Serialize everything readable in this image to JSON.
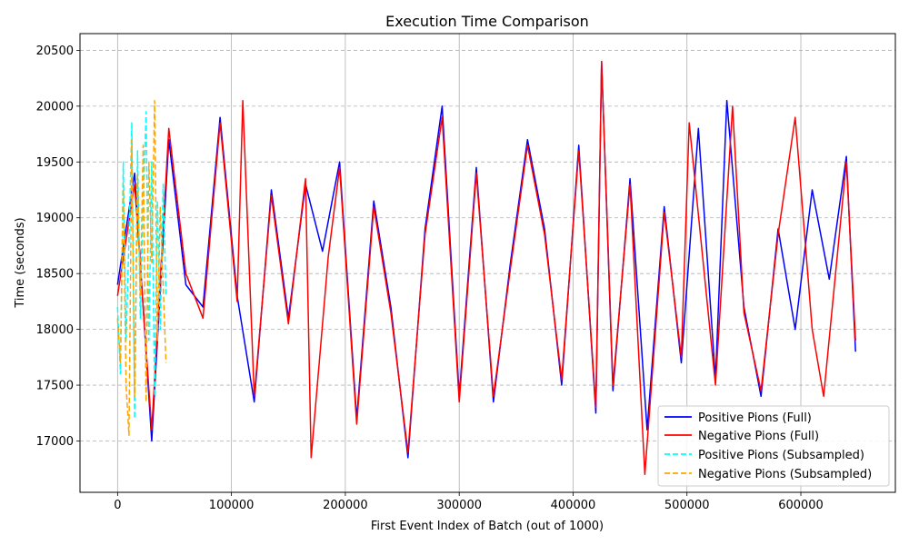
{
  "chart_data": {
    "type": "line",
    "title": "Execution Time Comparison",
    "xlabel": "First Event Index of Batch (out of 1000)",
    "ylabel": "Time (seconds)",
    "xlim": [
      -33000,
      683000
    ],
    "ylim": [
      16540,
      20650
    ],
    "xticks": [
      0,
      100000,
      200000,
      300000,
      400000,
      500000,
      600000
    ],
    "yticks": [
      17000,
      17500,
      18000,
      18500,
      19000,
      19500,
      20000,
      20500
    ],
    "grid": {
      "x": "solid",
      "y": "dashed"
    },
    "legend_position": "lower-right",
    "series": [
      {
        "name": "Positive Pions (Full)",
        "color": "#0000ff",
        "dash": "solid",
        "x": [
          0,
          15000,
          30000,
          45000,
          60000,
          75000,
          90000,
          105000,
          120000,
          135000,
          150000,
          165000,
          180000,
          195000,
          210000,
          225000,
          240000,
          255000,
          270000,
          285000,
          300000,
          315000,
          330000,
          345000,
          360000,
          375000,
          390000,
          405000,
          420000,
          425000,
          435000,
          450000,
          465000,
          480000,
          495000,
          510000,
          525000,
          535000,
          550000,
          565000,
          580000,
          595000,
          610000,
          625000,
          640000,
          648000
        ],
        "values": [
          18400,
          19400,
          17000,
          19700,
          18400,
          18200,
          19900,
          18300,
          17350,
          19250,
          18100,
          19300,
          18700,
          19500,
          17200,
          19150,
          18200,
          16850,
          18900,
          20000,
          17400,
          19450,
          17350,
          18600,
          19700,
          18900,
          17500,
          19650,
          17250,
          20400,
          17450,
          19350,
          17100,
          19100,
          17700,
          19800,
          17550,
          20050,
          18200,
          17400,
          18900,
          18000,
          19250,
          18450,
          19550,
          17800
        ]
      },
      {
        "name": "Negative Pions (Full)",
        "color": "#ff0000",
        "dash": "solid",
        "x": [
          0,
          15000,
          30000,
          45000,
          60000,
          75000,
          90000,
          105000,
          110000,
          120000,
          135000,
          150000,
          165000,
          170000,
          185000,
          195000,
          210000,
          225000,
          240000,
          255000,
          270000,
          285000,
          300000,
          315000,
          330000,
          345000,
          360000,
          375000,
          390000,
          405000,
          420000,
          425000,
          435000,
          450000,
          463000,
          480000,
          495000,
          502000,
          525000,
          540000,
          550000,
          565000,
          580000,
          595000,
          610000,
          620000,
          640000,
          648000
        ],
        "values": [
          18300,
          19300,
          17100,
          19800,
          18500,
          18100,
          19850,
          18250,
          20050,
          17400,
          19200,
          18050,
          19350,
          16850,
          18650,
          19450,
          17150,
          19100,
          18150,
          16900,
          18850,
          19900,
          17350,
          19400,
          17400,
          18550,
          19650,
          18850,
          17550,
          19600,
          17300,
          20400,
          17500,
          19300,
          16700,
          19050,
          17750,
          19850,
          17500,
          20000,
          18150,
          17450,
          18850,
          19900,
          18000,
          17400,
          19500,
          17900
        ]
      },
      {
        "name": "Positive Pions (Subsampled)",
        "color": "#00ffff",
        "dash": "dashed",
        "x": [
          0,
          2500,
          5000,
          7500,
          10000,
          12500,
          15000,
          17500,
          20000,
          22500,
          25000,
          27500,
          30000,
          32500,
          35000,
          37500,
          40000,
          42500
        ],
        "values": [
          18200,
          17600,
          19500,
          17900,
          18800,
          19850,
          17200,
          19600,
          18100,
          19100,
          19950,
          17900,
          19500,
          17400,
          19150,
          18000,
          19300,
          18300
        ]
      },
      {
        "name": "Negative Pions (Subsampled)",
        "color": "#ffa500",
        "dash": "dashed",
        "x": [
          0,
          2500,
          5000,
          7500,
          10000,
          12500,
          15000,
          17500,
          20000,
          22500,
          25000,
          27500,
          30000,
          32500,
          35000,
          37500,
          40000,
          42500
        ],
        "values": [
          18100,
          17700,
          19300,
          17500,
          17050,
          19700,
          17400,
          19400,
          18300,
          19650,
          17350,
          19500,
          18600,
          20050,
          17900,
          19100,
          18400,
          17700
        ]
      }
    ]
  }
}
